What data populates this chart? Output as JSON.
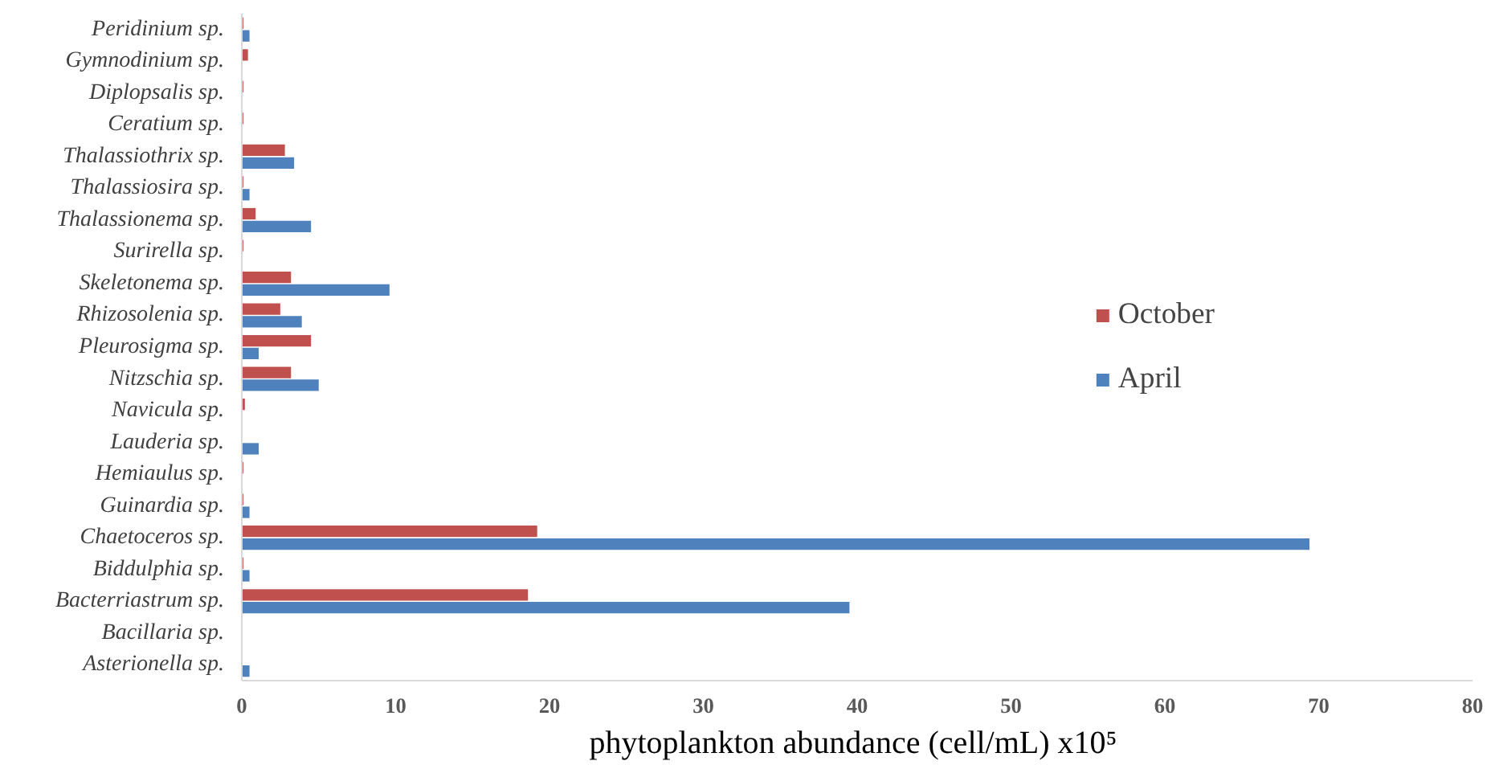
{
  "chart_data": {
    "type": "bar",
    "orientation": "horizontal",
    "xlabel": "phytoplankton abundance (cell/mL)  x10⁵",
    "categories": [
      "Peridinium sp.",
      "Gymnodinium sp.",
      "Diplopsalis sp.",
      "Ceratium sp.",
      "Thalassiothrix sp.",
      "Thalassiosira sp.",
      "Thalassionema sp.",
      "Surirella sp.",
      "Skeletonema sp.",
      "Rhizosolenia sp.",
      "Pleurosigma sp.",
      "Nitzschia sp.",
      "Navicula sp.",
      "Lauderia sp.",
      "Hemiaulus sp.",
      "Guinardia sp.",
      "Chaetoceros sp.",
      "Biddulphia sp.",
      "Bacterriastrum sp.",
      "Bacillaria sp.",
      "Asterionella sp."
    ],
    "series": [
      {
        "name": "October",
        "color": "#c0504d",
        "values": [
          0.1,
          0.4,
          0.1,
          0.1,
          2.8,
          0.1,
          0.9,
          0.1,
          3.2,
          2.5,
          4.5,
          3.2,
          0.2,
          0,
          0.1,
          0.1,
          19.2,
          0.1,
          18.6,
          0,
          0
        ]
      },
      {
        "name": "April",
        "color": "#4f81bd",
        "values": [
          0.5,
          0,
          0,
          0,
          3.4,
          0.5,
          4.5,
          0,
          9.6,
          3.9,
          1.1,
          5.0,
          0,
          1.1,
          0,
          0.5,
          69.4,
          0.5,
          39.5,
          0,
          0.5
        ]
      }
    ],
    "xlim": [
      0,
      80
    ],
    "xticks": [
      0,
      10,
      20,
      30,
      40,
      50,
      60,
      70,
      80
    ],
    "grid": false,
    "legend": "right"
  }
}
